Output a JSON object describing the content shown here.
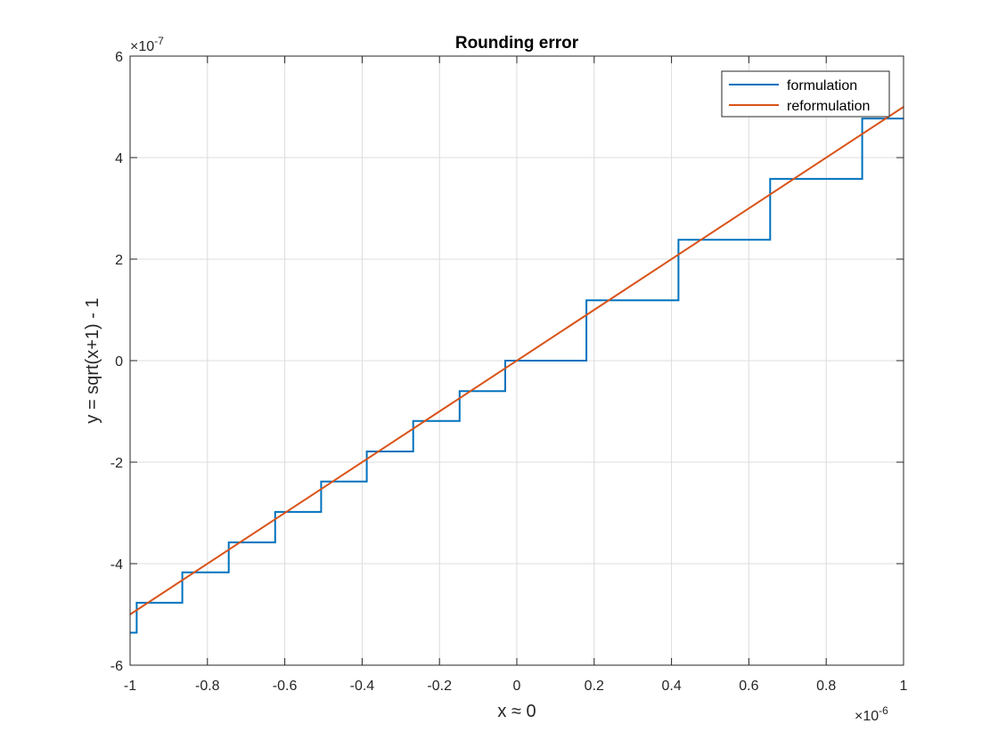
{
  "chart_data": {
    "type": "line",
    "title": "Rounding error",
    "xlabel": "x ≈ 0",
    "ylabel": "y = sqrt(x+1) - 1",
    "x_exponent": "-6",
    "y_exponent": "-7",
    "xlim": [
      -1,
      1
    ],
    "ylim": [
      -6,
      6
    ],
    "xticks": [
      -1,
      -0.8,
      -0.6,
      -0.4,
      -0.2,
      0,
      0.2,
      0.4,
      0.6,
      0.8,
      1
    ],
    "xtick_labels": [
      "-1",
      "-0.8",
      "-0.6",
      "-0.4",
      "-0.2",
      "0",
      "0.2",
      "0.4",
      "0.6",
      "0.8",
      "1"
    ],
    "yticks": [
      -6,
      -4,
      -2,
      0,
      2,
      4,
      6
    ],
    "ytick_labels": [
      "-6",
      "-4",
      "-2",
      "0",
      "2",
      "4",
      "6"
    ],
    "grid": true,
    "legend_position": "top-right",
    "series": [
      {
        "name": "formulation",
        "color": "#0072BD",
        "style": "step",
        "x": [
          -1,
          -0.983,
          -0.983,
          -0.865,
          -0.865,
          -0.745,
          -0.745,
          -0.625,
          -0.625,
          -0.506,
          -0.506,
          -0.388,
          -0.388,
          -0.268,
          -0.268,
          -0.148,
          -0.148,
          -0.03,
          -0.03,
          0.18,
          0.18,
          0.418,
          0.418,
          0.655,
          0.655,
          0.893,
          0.893,
          1
        ],
        "y": [
          -5.36,
          -5.36,
          -4.77,
          -4.77,
          -4.17,
          -4.17,
          -3.58,
          -3.58,
          -2.98,
          -2.98,
          -2.38,
          -2.38,
          -1.79,
          -1.79,
          -1.19,
          -1.19,
          -0.6,
          -0.6,
          0,
          0,
          1.19,
          1.19,
          2.38,
          2.38,
          3.58,
          3.58,
          4.77,
          4.77
        ]
      },
      {
        "name": "reformulation",
        "color": "#D95319",
        "style": "line",
        "x": [
          -1,
          1
        ],
        "y": [
          -5,
          5
        ]
      }
    ]
  }
}
